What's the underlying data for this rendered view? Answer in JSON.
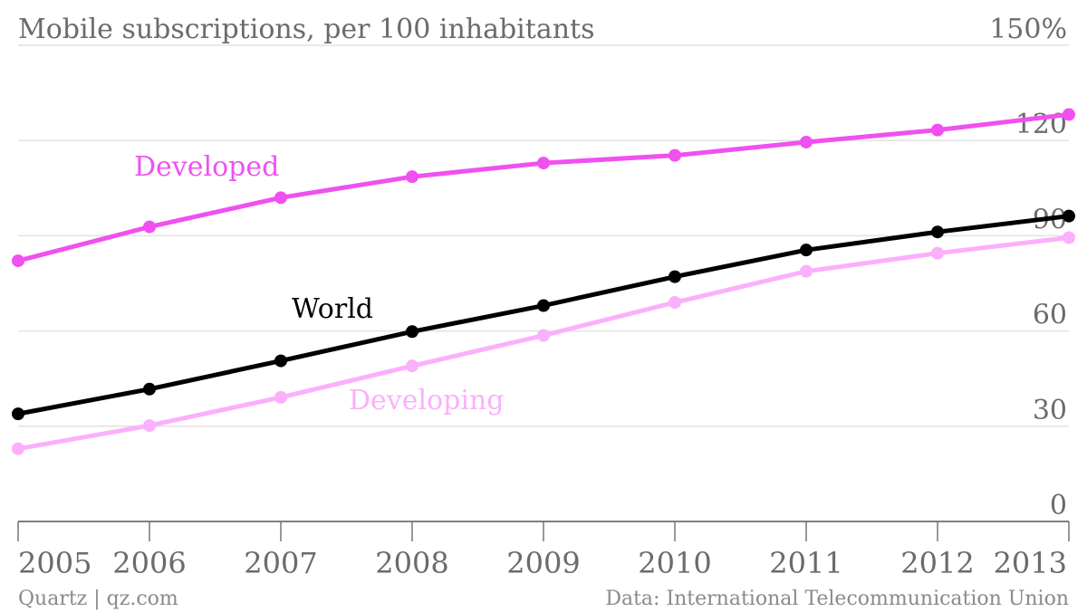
{
  "chart_data": {
    "type": "line",
    "title": "Mobile subscriptions, per 100 inhabitants",
    "x": [
      "2005",
      "2006",
      "2007",
      "2008",
      "2009",
      "2010",
      "2011",
      "2012",
      "2013"
    ],
    "y_ticks": [
      "0",
      "30",
      "60",
      "90",
      "120",
      "150%"
    ],
    "ylim": [
      0,
      150
    ],
    "grid": true,
    "series": [
      {
        "name": "Developed",
        "color": "#f050f0",
        "values": [
          82.1,
          92.8,
          102.0,
          108.6,
          112.9,
          115.3,
          119.5,
          123.3,
          128.2
        ]
      },
      {
        "name": "World",
        "color": "#000000",
        "values": [
          33.9,
          41.7,
          50.6,
          59.8,
          68.0,
          77.1,
          85.5,
          91.2,
          96.2
        ]
      },
      {
        "name": "Developing",
        "color": "#fbb0fb",
        "values": [
          22.9,
          30.2,
          39.1,
          49.0,
          58.6,
          69.0,
          78.8,
          84.5,
          89.4
        ]
      }
    ]
  },
  "footer": {
    "source_left": "Quartz | qz.com",
    "source_right": "Data: International Telecommunication Union"
  }
}
